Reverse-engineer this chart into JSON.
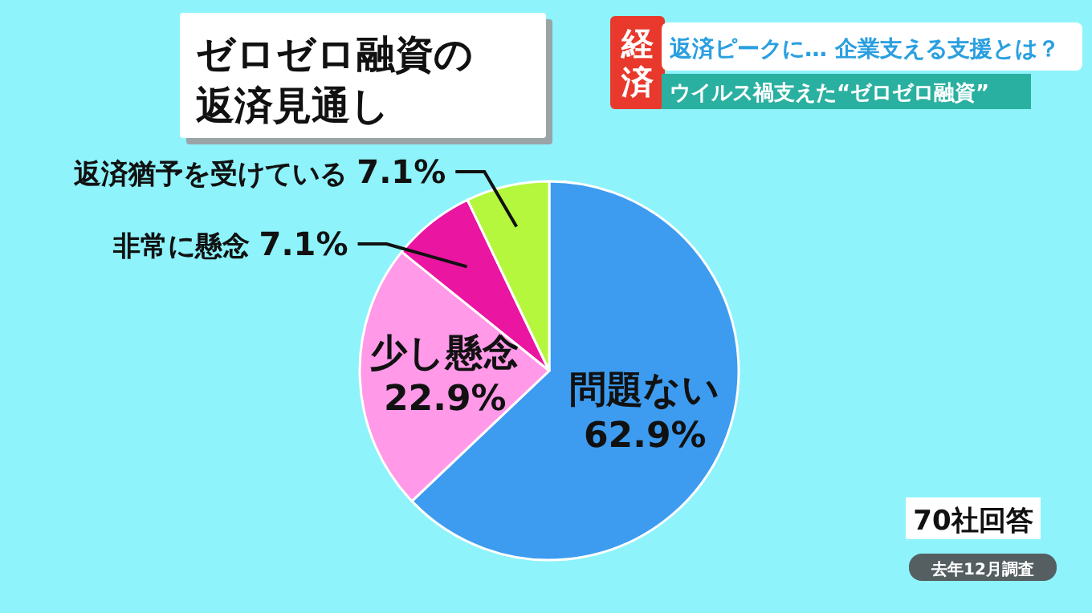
{
  "chart_data": {
    "type": "pie",
    "title": "ゼロゼロ融資の返済見通し",
    "categories": [
      "問題ない",
      "少し懸念",
      "非常に懸念",
      "返済猶予を受けている"
    ],
    "values": [
      62.9,
      22.9,
      7.1,
      7.1
    ],
    "value_labels": [
      "62.9%",
      "22.9%",
      "7.1%",
      "7.1%"
    ],
    "colors": [
      "#3d9cf0",
      "#ff99e8",
      "#ea15a0",
      "#b4f73c"
    ],
    "annotations": [
      "経済",
      "返済ピークに… 企業支える支援とは？",
      "ウイルス禍支えた“ゼロゼロ融資”",
      "70社回答",
      "去年12月調査"
    ]
  }
}
